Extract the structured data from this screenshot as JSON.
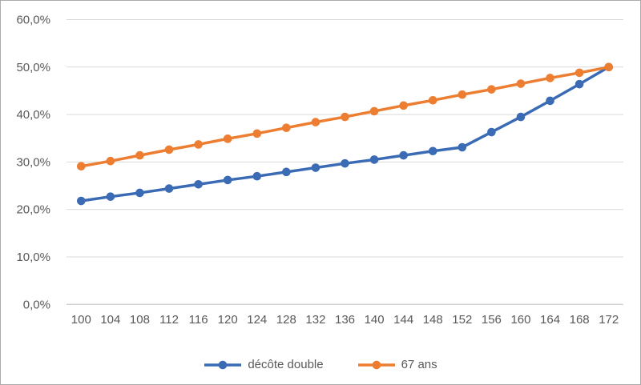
{
  "chart_data": {
    "type": "line",
    "title": "",
    "x": [
      100,
      104,
      108,
      112,
      116,
      120,
      124,
      128,
      132,
      136,
      140,
      144,
      148,
      152,
      156,
      160,
      164,
      168,
      172
    ],
    "series": [
      {
        "name": "décôte double",
        "color": "#3A6BB4",
        "marker": "circle",
        "values": [
          21.8,
          22.7,
          23.5,
          24.4,
          25.3,
          26.2,
          27.0,
          27.9,
          28.8,
          29.7,
          30.5,
          31.4,
          32.3,
          33.1,
          36.3,
          39.5,
          42.9,
          46.4,
          50.0
        ]
      },
      {
        "name": "67 ans",
        "color": "#ED7D31",
        "marker": "circle",
        "values": [
          29.1,
          30.2,
          31.4,
          32.6,
          33.7,
          34.9,
          36.0,
          37.2,
          38.4,
          39.5,
          40.7,
          41.9,
          43.0,
          44.2,
          45.3,
          46.5,
          47.7,
          48.8,
          50.0
        ]
      }
    ],
    "y_axis": {
      "range": [
        0,
        60
      ],
      "tick_values": [
        0,
        10,
        20,
        30,
        40,
        50,
        60
      ],
      "tick_labels": [
        "0,0%",
        "10,0%",
        "20,0%",
        "30,0%",
        "40,0%",
        "50,0%",
        "60,0%"
      ]
    },
    "x_axis": {
      "tick_labels": [
        "100",
        "104",
        "108",
        "112",
        "116",
        "120",
        "124",
        "128",
        "132",
        "136",
        "140",
        "144",
        "148",
        "152",
        "156",
        "160",
        "164",
        "168",
        "172"
      ]
    },
    "grid": true,
    "legend_position": "bottom"
  },
  "colors": {
    "gridline": "#D9D9D9",
    "axis_line": "#BFBFBF",
    "tick_label": "#595959",
    "frame_border": "#ABABAB",
    "background": "#FFFFFF"
  }
}
